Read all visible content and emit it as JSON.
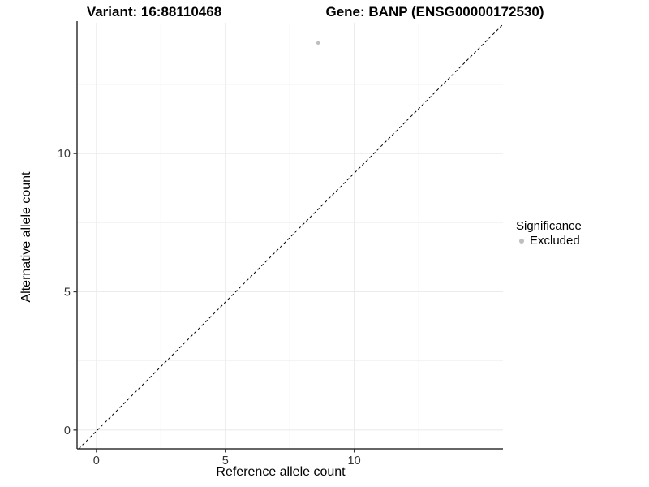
{
  "titles": {
    "left": "Variant: 16:88110468",
    "right": "Gene: BANP (ENSG00000172530)"
  },
  "chart_data": {
    "type": "scatter",
    "title": "Variant: 16:88110468   Gene: BANP (ENSG00000172530)",
    "xlabel": "Reference allele count",
    "ylabel": "Alternative allele count",
    "xlim": [
      -0.75,
      15.77
    ],
    "ylim": [
      -0.68,
      14.73
    ],
    "xticks": [
      0,
      5,
      10
    ],
    "yticks": [
      0,
      5,
      10
    ],
    "xticks_minor": [
      2.5,
      7.5,
      12.5
    ],
    "yticks_minor": [
      2.5,
      7.5,
      12.5
    ],
    "grid": "major+minor",
    "points": [
      {
        "x": 8.6,
        "y": 14,
        "series": "Excluded"
      }
    ],
    "identity_line": {
      "slope": 1,
      "intercept": 0,
      "style": "dashed",
      "color": "#000000"
    },
    "legend": {
      "title": "Significance",
      "position": "right",
      "items": [
        {
          "label": "Excluded",
          "color": "#bebebe",
          "marker": "circle"
        }
      ]
    },
    "colors": {
      "point": "#bebebe",
      "grid_major": "#ebebeb",
      "grid_minor": "#f3f3f3",
      "axis_line": "#333333",
      "tick_mark": "#333333",
      "tick_label": "#333333",
      "text": "#000000",
      "background": "#ffffff"
    }
  }
}
